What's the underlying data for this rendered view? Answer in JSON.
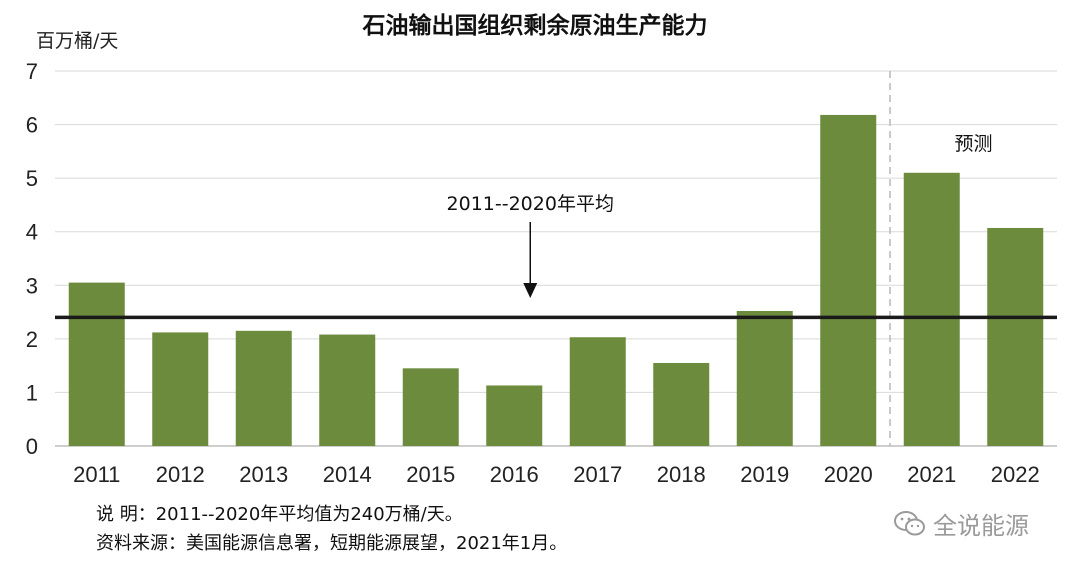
{
  "chart_data": {
    "type": "bar",
    "title": "石油输出国组织剩余原油生产能力",
    "ylabel": "百万桶/天",
    "xlabel": "",
    "categories": [
      "2011",
      "2012",
      "2013",
      "2014",
      "2015",
      "2016",
      "2017",
      "2018",
      "2019",
      "2020",
      "2021",
      "2022"
    ],
    "series": [
      {
        "values": [
          3.05,
          2.12,
          2.15,
          2.08,
          1.45,
          1.13,
          2.03,
          1.55,
          2.52,
          6.18,
          5.1,
          4.07
        ]
      }
    ],
    "ylim": [
      0,
      7
    ],
    "yticks": [
      "0",
      "1",
      "2",
      "3",
      "4",
      "5",
      "6",
      "7"
    ],
    "grid": true,
    "bar_color": "#6d8b3d",
    "average_line": {
      "value": 2.4,
      "label": "2011--2020年平均",
      "color": "#1a1a1a"
    },
    "forecast": {
      "label": "预测",
      "start_category": "2021"
    }
  },
  "notes": {
    "line1": "说    明：2011--2020年平均值为240万桶/天。",
    "line2": "资料来源：美国能源信息署，短期能源展望，2021年1月。"
  },
  "watermark": {
    "text": "全说能源",
    "icon": "wechat-icon"
  }
}
